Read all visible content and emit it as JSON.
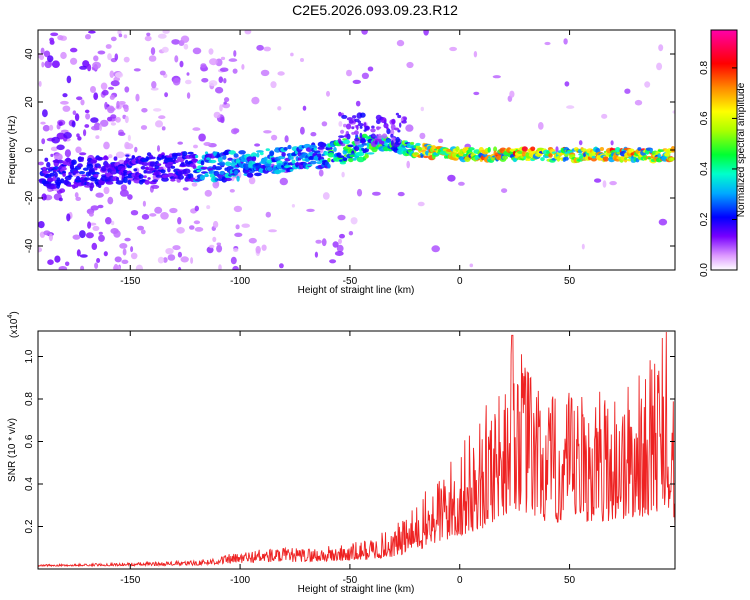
{
  "title": "C2E5.2026.093.09.23.R12",
  "chart_data": [
    {
      "type": "heatmap",
      "xlabel": "Height of straight line (km)",
      "ylabel": "Frequency (Hz)",
      "xlim": [
        -192,
        98
      ],
      "ylim": [
        -50,
        50
      ],
      "xticks": [
        -150,
        -100,
        -50,
        0,
        50
      ],
      "xtick_labels": [
        "-150",
        "-100",
        "-50",
        "0",
        "50"
      ],
      "yticks": [
        -40,
        -20,
        0,
        20,
        40
      ],
      "ytick_labels": [
        "-40",
        "-20",
        "0",
        "20",
        "40"
      ],
      "ridge": {
        "x": [
          -180,
          -150,
          -120,
          -100,
          -80,
          -60,
          -50,
          -40,
          -35,
          -30,
          -20,
          0,
          25,
          50,
          75,
          95
        ],
        "frequency": [
          -10,
          -8,
          -7,
          -6,
          -4,
          -2,
          0,
          2,
          3,
          2,
          0,
          -2,
          -2,
          -2,
          -2,
          -2
        ]
      },
      "colorbar": {
        "label": "Normalized spectral amplitude",
        "range": [
          0,
          0.95
        ],
        "ticks": [
          0.0,
          0.2,
          0.4,
          0.6,
          0.8
        ],
        "tick_labels": [
          "0.0",
          "0.2",
          "0.4",
          "0.6",
          "0.8"
        ],
        "colors": [
          "#ffffff",
          "#cc66ff",
          "#7700ff",
          "#0000ff",
          "#00ddff",
          "#00ff66",
          "#aaff00",
          "#ffff00",
          "#ff8800",
          "#ff0000",
          "#ff00aa"
        ]
      },
      "grid": false
    },
    {
      "type": "line",
      "xlabel": "Height of straight line (km)",
      "ylabel": "SNR (10 * v/v)",
      "y_multiplier_label": "(x10",
      "y_multiplier_exp": "4",
      "xlim": [
        -192,
        98
      ],
      "ylim": [
        0,
        1.12
      ],
      "xticks": [
        -150,
        -100,
        -50,
        0,
        50
      ],
      "xtick_labels": [
        "-150",
        "-100",
        "-50",
        "0",
        "50"
      ],
      "yticks": [
        0.2,
        0.4,
        0.6,
        0.8,
        1.0
      ],
      "ytick_labels": [
        "0.2",
        "0.4",
        "0.6",
        "0.8",
        "1.0"
      ],
      "series": [
        {
          "color": "#ee2222",
          "envelope_x": [
            -192,
            -150,
            -120,
            -100,
            -90,
            -70,
            -50,
            -40,
            -30,
            -20,
            -10,
            0,
            10,
            25,
            40,
            60,
            80,
            95,
            98
          ],
          "envelope_y": [
            0.02,
            0.03,
            0.04,
            0.08,
            0.1,
            0.1,
            0.12,
            0.15,
            0.2,
            0.3,
            0.45,
            0.58,
            0.72,
            1.1,
            0.82,
            0.85,
            0.9,
            1.13,
            0.7
          ]
        }
      ],
      "grid": false
    }
  ]
}
